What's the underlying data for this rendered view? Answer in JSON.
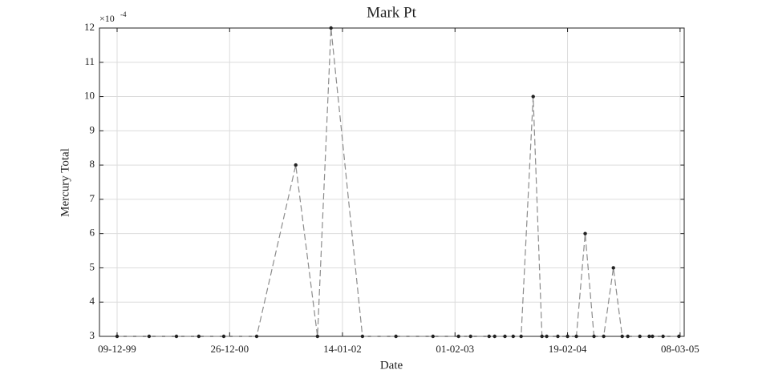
{
  "chart_data": {
    "type": "line",
    "title": "Mark Pt",
    "xlabel": "Date",
    "ylabel": "Mercury Total",
    "y_exponent_label": {
      "base": "×10",
      "exponent": "-4"
    },
    "xlim": [
      "1999-10-10",
      "2005-03-22"
    ],
    "xticks": [
      {
        "value": "1999-12-09",
        "label": "09-12-99"
      },
      {
        "value": "2000-12-26",
        "label": "26-12-00"
      },
      {
        "value": "2002-01-14",
        "label": "14-01-02"
      },
      {
        "value": "2003-02-01",
        "label": "01-02-03"
      },
      {
        "value": "2004-02-19",
        "label": "19-02-04"
      },
      {
        "value": "2005-03-08",
        "label": "08-03-05"
      }
    ],
    "ylim": [
      3,
      12
    ],
    "yticks": [
      3,
      4,
      5,
      6,
      7,
      8,
      9,
      10,
      11,
      12
    ],
    "grid": true,
    "x": [
      "1999-12-09",
      "2000-03-27",
      "2000-06-28",
      "2000-09-12",
      "2000-12-06",
      "2001-03-28",
      "2001-08-08",
      "2001-10-21",
      "2001-12-06",
      "2002-03-23",
      "2002-07-15",
      "2002-11-18",
      "2003-02-13",
      "2003-03-26",
      "2003-05-28",
      "2003-06-16",
      "2003-07-21",
      "2003-08-18",
      "2003-09-14",
      "2003-10-25",
      "2003-11-24",
      "2003-12-10",
      "2004-01-17",
      "2004-02-19",
      "2004-03-20",
      "2004-04-19",
      "2004-05-19",
      "2004-06-21",
      "2004-07-24",
      "2004-08-23",
      "2004-09-11",
      "2004-10-22",
      "2004-11-23",
      "2004-12-04",
      "2005-01-09",
      "2005-03-04"
    ],
    "series": [
      {
        "color": "#8c8c8c",
        "marker_color": "#222222",
        "values": [
          3,
          3,
          3,
          3,
          3,
          3,
          8,
          3,
          12,
          3,
          3,
          3,
          3,
          3,
          3,
          3,
          3,
          3,
          3,
          10,
          3,
          3,
          3,
          3,
          3,
          6,
          3,
          3,
          5,
          3,
          3,
          3,
          3,
          3,
          3,
          3
        ]
      }
    ]
  }
}
